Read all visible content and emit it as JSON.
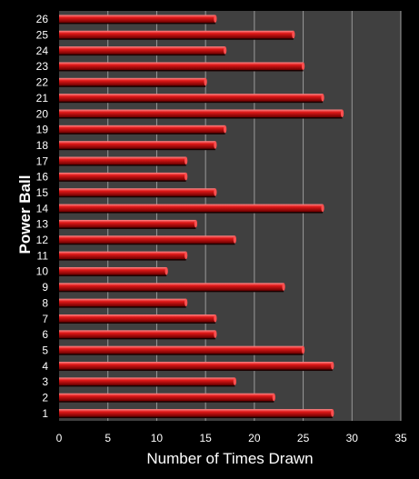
{
  "chart_data": {
    "type": "bar",
    "orientation": "horizontal",
    "title": "",
    "xlabel": "Number of Times Drawn",
    "ylabel": "Power Ball",
    "xlim": [
      0,
      35
    ],
    "x_ticks": [
      0,
      5,
      10,
      15,
      20,
      25,
      30,
      35
    ],
    "categories": [
      "1",
      "2",
      "3",
      "4",
      "5",
      "6",
      "7",
      "8",
      "9",
      "10",
      "11",
      "12",
      "13",
      "14",
      "15",
      "16",
      "17",
      "18",
      "19",
      "20",
      "21",
      "22",
      "23",
      "24",
      "25",
      "26"
    ],
    "values": [
      28,
      22,
      18,
      28,
      25,
      16,
      16,
      13,
      23,
      11,
      13,
      18,
      14,
      27,
      16,
      13,
      13,
      16,
      17,
      29,
      27,
      15,
      25,
      17,
      24,
      16
    ],
    "grid": "vertical",
    "legend": "none",
    "colors": {
      "background": "#000000",
      "plot_area": "#404040",
      "gridline": "#9a9a9a",
      "bar": "#cc1010",
      "bar_highlight": "#ff6a6a",
      "bar_shadow": "#5a0000",
      "text": "#ffffff"
    }
  }
}
